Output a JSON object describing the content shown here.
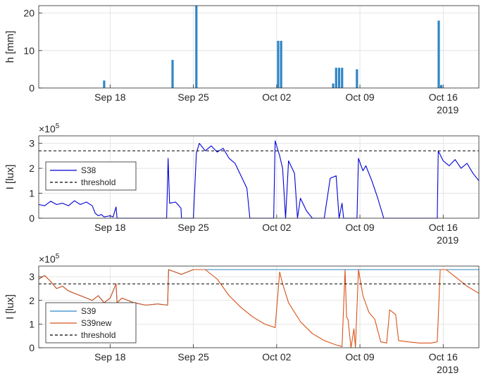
{
  "x_ticks": [
    "Sep 18",
    "Sep 25",
    "Oct 02",
    "Oct 09",
    "Oct 16"
  ],
  "x_year": "2019",
  "colors": {
    "rain": "#2f86c6",
    "s38": "#0000d8",
    "s39": "#2f86c6",
    "s39new": "#d95319",
    "threshold": "#000000"
  },
  "chart_data": [
    {
      "type": "bar",
      "xlabel": "",
      "ylabel": "h [mm]",
      "xlim": [
        "2019-09-12",
        "2019-10-19"
      ],
      "ylim": [
        0,
        22
      ],
      "yticks": [
        "0",
        "10",
        "20"
      ],
      "grid": true,
      "series": [
        {
          "values": [
            {
              "x": "2019-09-17T12:00",
              "y": 2
            },
            {
              "x": "2019-09-23T06:00",
              "y": 7.5
            },
            {
              "x": "2019-09-25T06:00",
              "y": 22
            },
            {
              "x": "2019-10-02T03:00",
              "y": 12.6
            },
            {
              "x": "2019-10-02T09:00",
              "y": 12.6
            },
            {
              "x": "2019-10-06T18:00",
              "y": 1.2
            },
            {
              "x": "2019-10-07T00:00",
              "y": 5.4
            },
            {
              "x": "2019-10-07T06:00",
              "y": 5.4
            },
            {
              "x": "2019-10-07T12:00",
              "y": 5.4
            },
            {
              "x": "2019-10-08T18:00",
              "y": 5
            },
            {
              "x": "2019-10-15T15:00",
              "y": 18
            },
            {
              "x": "2019-10-15T20:00",
              "y": 0.8
            }
          ]
        }
      ]
    },
    {
      "type": "line",
      "xlabel": "",
      "ylabel": "I [lux]",
      "y_multiplier": "×10",
      "y_multiplier_exp": "5",
      "xlim": [
        "2019-09-12",
        "2019-10-19"
      ],
      "ylim": [
        0,
        3.3
      ],
      "yticks": [
        "0",
        "1",
        "2",
        "3"
      ],
      "grid": true,
      "legend_position": "middle-left",
      "threshold": 2.7,
      "legend": [
        "S38",
        "threshold"
      ],
      "series": [
        {
          "name": "S38",
          "points": [
            [
              "2019-09-12T00:00",
              0.55
            ],
            [
              "2019-09-12T12:00",
              0.5
            ],
            [
              "2019-09-13T00:00",
              0.68
            ],
            [
              "2019-09-13T12:00",
              0.55
            ],
            [
              "2019-09-14T00:00",
              0.6
            ],
            [
              "2019-09-14T12:00",
              0.5
            ],
            [
              "2019-09-15T00:00",
              0.7
            ],
            [
              "2019-09-15T12:00",
              0.55
            ],
            [
              "2019-09-16T00:00",
              0.65
            ],
            [
              "2019-09-16T12:00",
              0.5
            ],
            [
              "2019-09-16T18:00",
              0.2
            ],
            [
              "2019-09-17T00:00",
              0.1
            ],
            [
              "2019-09-17T06:00",
              0.15
            ],
            [
              "2019-09-17T12:00",
              0.05
            ],
            [
              "2019-09-18T00:00",
              0.1
            ],
            [
              "2019-09-18T06:00",
              0.05
            ],
            [
              "2019-09-18T12:00",
              0.45
            ],
            [
              "2019-09-18T14:00",
              0.0
            ],
            [
              "2019-09-22T18:00",
              0.0
            ],
            [
              "2019-09-22T21:00",
              2.4
            ],
            [
              "2019-09-23T00:00",
              0.6
            ],
            [
              "2019-09-23T12:00",
              0.65
            ],
            [
              "2019-09-23T23:00",
              0.4
            ],
            [
              "2019-09-24T00:00",
              0.0
            ],
            [
              "2019-09-25T00:00",
              0.0
            ],
            [
              "2019-09-25T06:00",
              2.6
            ],
            [
              "2019-09-25T12:00",
              3.0
            ],
            [
              "2019-09-26T00:00",
              2.7
            ],
            [
              "2019-09-26T12:00",
              2.9
            ],
            [
              "2019-09-27T00:00",
              2.65
            ],
            [
              "2019-09-27T12:00",
              2.8
            ],
            [
              "2019-09-28T00:00",
              2.4
            ],
            [
              "2019-09-28T12:00",
              2.2
            ],
            [
              "2019-09-29T00:00",
              1.7
            ],
            [
              "2019-09-29T12:00",
              1.2
            ],
            [
              "2019-09-29T18:00",
              0.0
            ],
            [
              "2019-10-01T18:00",
              0.0
            ],
            [
              "2019-10-01T21:00",
              3.1
            ],
            [
              "2019-10-02T06:00",
              2.5
            ],
            [
              "2019-10-02T12:00",
              2.0
            ],
            [
              "2019-10-02T18:00",
              0.0
            ],
            [
              "2019-10-03T00:00",
              2.3
            ],
            [
              "2019-10-03T12:00",
              1.8
            ],
            [
              "2019-10-03T18:00",
              0.0
            ],
            [
              "2019-10-04T00:00",
              0.8
            ],
            [
              "2019-10-04T12:00",
              0.3
            ],
            [
              "2019-10-05T00:00",
              0.0
            ],
            [
              "2019-10-06T00:00",
              0.0
            ],
            [
              "2019-10-06T12:00",
              1.6
            ],
            [
              "2019-10-07T00:00",
              1.7
            ],
            [
              "2019-10-07T06:00",
              0.0
            ],
            [
              "2019-10-07T12:00",
              0.6
            ],
            [
              "2019-10-07T15:00",
              0.0
            ],
            [
              "2019-10-08T18:00",
              0.0
            ],
            [
              "2019-10-08T21:00",
              2.4
            ],
            [
              "2019-10-09T06:00",
              1.9
            ],
            [
              "2019-10-09T12:00",
              2.1
            ],
            [
              "2019-10-10T00:00",
              1.5
            ],
            [
              "2019-10-10T12:00",
              0.8
            ],
            [
              "2019-10-11T00:00",
              0.0
            ],
            [
              "2019-10-15T12:00",
              0.0
            ],
            [
              "2019-10-15T14:00",
              2.7
            ],
            [
              "2019-10-16T00:00",
              2.3
            ],
            [
              "2019-10-16T12:00",
              2.1
            ],
            [
              "2019-10-17T00:00",
              2.35
            ],
            [
              "2019-10-17T12:00",
              2.0
            ],
            [
              "2019-10-18T00:00",
              2.2
            ],
            [
              "2019-10-18T12:00",
              1.8
            ],
            [
              "2019-10-19T00:00",
              1.5
            ]
          ]
        }
      ]
    },
    {
      "type": "line",
      "xlabel": "",
      "ylabel": "I [lux]",
      "y_multiplier": "×10",
      "y_multiplier_exp": "5",
      "xlim": [
        "2019-09-12",
        "2019-10-19"
      ],
      "ylim": [
        0,
        3.45
      ],
      "yticks": [
        "0",
        "1",
        "2",
        "3"
      ],
      "grid": true,
      "legend_position": "bottom-left",
      "threshold": 2.7,
      "legend": [
        "S39",
        "S39new",
        "threshold"
      ],
      "series": [
        {
          "name": "S39",
          "points": [
            [
              "2019-09-12T00:00",
              2.9
            ],
            [
              "2019-09-12T12:00",
              3.05
            ],
            [
              "2019-09-13T00:00",
              2.8
            ],
            [
              "2019-09-13T12:00",
              2.5
            ],
            [
              "2019-09-14T00:00",
              2.6
            ],
            [
              "2019-09-14T12:00",
              2.4
            ],
            [
              "2019-09-15T00:00",
              2.3
            ],
            [
              "2019-09-15T12:00",
              2.2
            ],
            [
              "2019-09-16T00:00",
              2.1
            ],
            [
              "2019-09-16T12:00",
              2.0
            ],
            [
              "2019-09-17T00:00",
              2.2
            ],
            [
              "2019-09-17T12:00",
              1.9
            ],
            [
              "2019-09-18T00:00",
              2.1
            ],
            [
              "2019-09-18T12:00",
              2.7
            ],
            [
              "2019-09-18T14:00",
              1.9
            ],
            [
              "2019-09-19T00:00",
              2.1
            ],
            [
              "2019-09-20T00:00",
              1.9
            ],
            [
              "2019-09-21T00:00",
              1.8
            ],
            [
              "2019-09-22T00:00",
              1.85
            ],
            [
              "2019-09-22T20:00",
              1.8
            ],
            [
              "2019-09-22T22:00",
              3.3
            ],
            [
              "2019-09-24T00:00",
              3.1
            ],
            [
              "2019-09-25T00:00",
              3.3
            ],
            [
              "2019-10-19T00:00",
              3.3
            ]
          ]
        },
        {
          "name": "S39new",
          "points": [
            [
              "2019-09-12T00:00",
              2.9
            ],
            [
              "2019-09-12T12:00",
              3.05
            ],
            [
              "2019-09-13T00:00",
              2.8
            ],
            [
              "2019-09-13T12:00",
              2.5
            ],
            [
              "2019-09-14T00:00",
              2.6
            ],
            [
              "2019-09-14T12:00",
              2.4
            ],
            [
              "2019-09-15T00:00",
              2.3
            ],
            [
              "2019-09-15T12:00",
              2.2
            ],
            [
              "2019-09-16T00:00",
              2.1
            ],
            [
              "2019-09-16T12:00",
              2.0
            ],
            [
              "2019-09-17T00:00",
              2.2
            ],
            [
              "2019-09-17T12:00",
              1.9
            ],
            [
              "2019-09-18T00:00",
              2.1
            ],
            [
              "2019-09-18T12:00",
              2.7
            ],
            [
              "2019-09-18T14:00",
              1.9
            ],
            [
              "2019-09-19T00:00",
              2.1
            ],
            [
              "2019-09-20T00:00",
              1.9
            ],
            [
              "2019-09-21T00:00",
              1.8
            ],
            [
              "2019-09-22T00:00",
              1.85
            ],
            [
              "2019-09-22T20:00",
              1.8
            ],
            [
              "2019-09-22T22:00",
              3.3
            ],
            [
              "2019-09-24T00:00",
              3.1
            ],
            [
              "2019-09-25T00:00",
              3.3
            ],
            [
              "2019-09-26T00:00",
              3.3
            ],
            [
              "2019-09-27T00:00",
              2.9
            ],
            [
              "2019-09-28T00:00",
              2.2
            ],
            [
              "2019-09-29T00:00",
              1.7
            ],
            [
              "2019-09-30T00:00",
              1.3
            ],
            [
              "2019-10-01T00:00",
              1.0
            ],
            [
              "2019-10-01T21:00",
              0.85
            ],
            [
              "2019-10-02T06:00",
              3.2
            ],
            [
              "2019-10-02T12:00",
              2.7
            ],
            [
              "2019-10-03T00:00",
              1.9
            ],
            [
              "2019-10-04T00:00",
              1.1
            ],
            [
              "2019-10-05T00:00",
              0.6
            ],
            [
              "2019-10-06T00:00",
              0.3
            ],
            [
              "2019-10-07T00:00",
              0.12
            ],
            [
              "2019-10-07T12:00",
              0.05
            ],
            [
              "2019-10-07T18:00",
              3.3
            ],
            [
              "2019-10-07T21:00",
              1.3
            ],
            [
              "2019-10-08T00:00",
              1.2
            ],
            [
              "2019-10-08T06:00",
              0.0
            ],
            [
              "2019-10-08T12:00",
              0.8
            ],
            [
              "2019-10-08T15:00",
              0.0
            ],
            [
              "2019-10-08T21:00",
              3.3
            ],
            [
              "2019-10-09T06:00",
              2.2
            ],
            [
              "2019-10-09T18:00",
              1.5
            ],
            [
              "2019-10-10T06:00",
              1.2
            ],
            [
              "2019-10-10T18:00",
              0.25
            ],
            [
              "2019-10-11T06:00",
              0.2
            ],
            [
              "2019-10-11T12:00",
              1.6
            ],
            [
              "2019-10-12T00:00",
              1.4
            ],
            [
              "2019-10-12T06:00",
              0.3
            ],
            [
              "2019-10-13T00:00",
              0.25
            ],
            [
              "2019-10-14T00:00",
              0.2
            ],
            [
              "2019-10-15T00:00",
              0.2
            ],
            [
              "2019-10-15T12:00",
              0.25
            ],
            [
              "2019-10-15T18:00",
              3.3
            ],
            [
              "2019-10-16T06:00",
              3.3
            ],
            [
              "2019-10-17T00:00",
              3.0
            ],
            [
              "2019-10-18T00:00",
              2.6
            ],
            [
              "2019-10-19T00:00",
              2.3
            ]
          ]
        }
      ]
    }
  ]
}
